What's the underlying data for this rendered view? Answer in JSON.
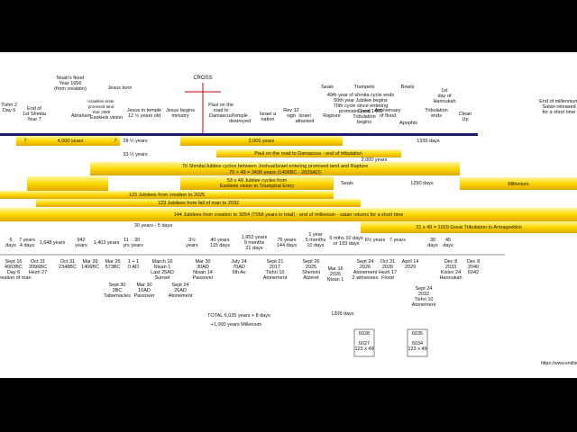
{
  "top_labels": [
    [
      "Tishri 2",
      "Day 6"
    ],
    [
      "End of",
      "1st Shmita",
      "Year 7"
    ],
    [
      "Noah's flood",
      "Year 1656",
      "(from creation)"
    ],
    [
      "Abraham"
    ],
    [
      "Jesus born"
    ],
    [
      "Israelites enter",
      "promised land",
      "Year 2588"
    ],
    [
      "Ezekiels vision"
    ],
    [
      "Jesus in temple",
      "12 ½ years old"
    ],
    [
      "Jesus begins",
      "ministry"
    ],
    [
      "CROSS"
    ],
    [
      "Paul on the",
      "road to",
      "Damascus"
    ],
    [
      "Temple",
      "destroyed"
    ],
    [
      "Israel a",
      "nation"
    ],
    [
      "Rev 12",
      "sign"
    ],
    [
      "Israel",
      "attacked"
    ],
    [
      "Seals"
    ],
    [
      "Trumpets"
    ],
    [
      "Bowls"
    ],
    [
      "49th year of shmita cycle ends",
      "50th year Jubilee begins",
      "70th cycle since entering",
      "promised land 1406"
    ],
    [
      "Rapture"
    ],
    [
      "Great",
      "Tribulation",
      "begins"
    ],
    [
      "Anniversary",
      "of flood"
    ],
    [
      "Apophis"
    ],
    [
      "Tribulation",
      "ends"
    ],
    [
      "1st",
      "day of",
      "Hannukah"
    ],
    [
      "Clean",
      "Up"
    ],
    [
      "End of millennium",
      "Satan released",
      "for a short time"
    ]
  ],
  "band_labels": [
    [
      "7"
    ],
    [
      "4,000 years"
    ],
    [
      "7"
    ],
    [
      "28 ½ years"
    ],
    [
      "2,000 years"
    ],
    [
      "1335 days"
    ],
    [
      "33 ½ years"
    ],
    [
      "Paul on the road to Damascus - end of tribulation"
    ],
    [
      "2,000 years"
    ]
  ],
  "bars": [
    "70 Shmita/Jubilee cycles between Joshua/Israel entering promised land and Rapture",
    "70 × 49 = 3430 years (1406BC - 2025AD)",
    "53 x 49 Jubilee cycles from",
    "Ezekiels vision to Triumphal Entry",
    "Seals",
    "1290 days",
    "Millenium",
    "123 Jubilees from creation to 2025",
    "123 Jubilees from fall of man to 2032",
    "144 Jubilees from creation to 3054 (7056 years in total) - end of millenium - satan returns for a short time",
    "30 years - 5 days",
    "21 x 49 = 1029  Great Tribulation to Armageddon"
  ],
  "durations": [
    [
      "6",
      "days"
    ],
    [
      "7 years",
      "4 days"
    ],
    [
      "1,648 years"
    ],
    [
      "942",
      "years"
    ],
    [
      "1,403 years"
    ],
    [
      "11",
      "yrs"
    ],
    [
      "30",
      "years"
    ],
    [
      "3½",
      "years"
    ],
    [
      "40 years",
      "115 days"
    ],
    [
      "1,952 years",
      "9 months",
      "21 days"
    ],
    [
      "75 years",
      "144 days"
    ],
    [
      "1 year",
      "5 months",
      "10 days"
    ],
    [
      "6 mths 10 days",
      "or 193 days"
    ],
    [
      "6½ years"
    ],
    [
      "7 years"
    ],
    [
      "30",
      "days"
    ],
    [
      "45",
      "days"
    ]
  ],
  "dates": [
    [
      "Sept 16",
      "4003BC",
      "Day 6",
      "Creation of man"
    ],
    [
      "Oct 31",
      "3996BC",
      "Hezh 27"
    ],
    [
      "Oct 31",
      "2348BC"
    ],
    [
      "Mar 26",
      "1406BC"
    ],
    [
      "Mar 26",
      "573BC"
    ],
    [
      "1 + 1",
      "0 AD"
    ],
    [
      "March 16",
      "Nisan 1",
      "Last 25AD",
      "Sunset"
    ],
    [
      "Mar 30",
      "30AD",
      "Nisan 14",
      "Passover"
    ],
    [
      "July 24",
      "70AD",
      "9th Av"
    ],
    [
      "Sept 21",
      "2017",
      "Tishri 10",
      "Atonement"
    ],
    [
      "Sept 26",
      "2025",
      "Shemini",
      "Atzeret"
    ],
    [
      "Mar 16",
      "2026",
      "Nisan 1"
    ],
    [
      "Sept 24",
      "2026",
      "Atonement",
      "2 witnesses"
    ],
    [
      "Oct 31",
      "2026",
      "Hezh 17",
      "Flood"
    ],
    [
      "April 14",
      "2029"
    ],
    [
      "Sept 24",
      "2032",
      "Tishri 10",
      "Atonement"
    ],
    [
      "Dec 8",
      "2033",
      "Kislev 24",
      "Hannukah"
    ],
    [
      "Dec 8",
      "2040",
      "6042"
    ],
    [
      "Sept 30",
      "3BC",
      "Tabernacles"
    ],
    [
      "Mar 30",
      "10AD",
      "Passover"
    ],
    [
      "Sept 24",
      "26AD",
      "Atonement"
    ]
  ],
  "notes": [
    [
      "TOTAL 6,035 years + 8 days"
    ],
    [
      "+1,000 years Millenium"
    ],
    [
      "1209 days"
    ]
  ],
  "boxes": [
    [
      "6028"
    ],
    [
      "6027",
      "123 x 49"
    ],
    [
      "6035"
    ],
    [
      "6034",
      "123 x 49"
    ]
  ],
  "url": "https://www.endtime-stud"
}
